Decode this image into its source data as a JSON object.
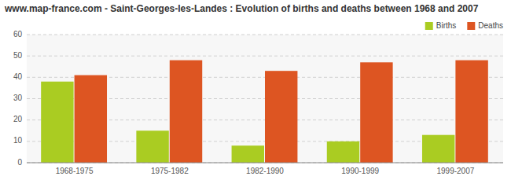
{
  "chart_data": {
    "type": "bar",
    "title": "www.map-france.com - Saint-Georges-les-Landes : Evolution of births and deaths between 1968 and 2007",
    "categories": [
      "1968-1975",
      "1975-1982",
      "1982-1990",
      "1990-1999",
      "1999-2007"
    ],
    "series": [
      {
        "name": "Births",
        "color": "#aacc22",
        "values": [
          38,
          15,
          8,
          10,
          13
        ]
      },
      {
        "name": "Deaths",
        "color": "#dd5522",
        "values": [
          41,
          48,
          43,
          47,
          48
        ]
      }
    ],
    "ylim": [
      0,
      60
    ],
    "yticks": [
      0,
      10,
      20,
      30,
      40,
      50,
      60
    ],
    "grid": true,
    "legend": "upper right"
  }
}
